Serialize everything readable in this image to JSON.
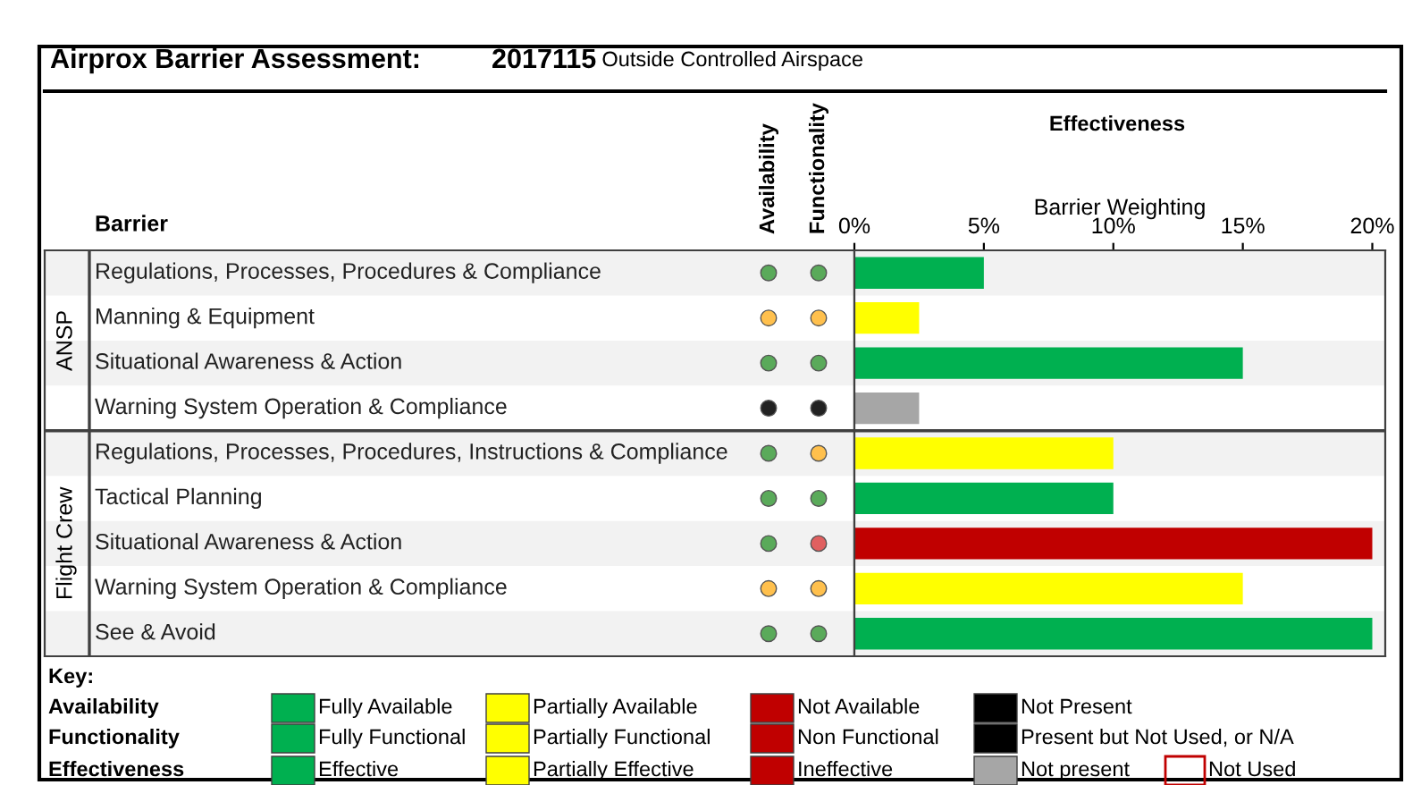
{
  "chart_data": {
    "type": "bar",
    "orientation": "horizontal",
    "title": "Airprox Barrier Assessment:",
    "subtitle": "2017115 Outside Controlled Airspace",
    "ylabel": "Barrier",
    "x2label": "Effectiveness",
    "xlabel": "Barrier Weighting",
    "categories": [
      "Regulations, Processes, Procedures & Compliance",
      "Manning & Equipment",
      "Situational Awareness & Action",
      "Warning System Operation & Compliance",
      "Regulations, Processes, Procedures, Instructions & Compliance",
      "Tactical Planning",
      "Situational Awareness & Action",
      "Warning System Operation & Compliance",
      "See & Avoid"
    ],
    "series": [
      {
        "values": [
          5,
          2.5,
          15,
          2.5,
          10,
          10,
          20,
          15,
          20
        ],
        "colors": [
          "#00b050",
          "#ffff00",
          "#00b050",
          "#a6a6a6",
          "#ffff00",
          "#00b050",
          "#c00000",
          "#ffff00",
          "#00b050"
        ]
      }
    ],
    "xlim": [
      0,
      20.5
    ],
    "xticks": [
      {
        "value": 0,
        "label": "0%"
      },
      {
        "value": 5,
        "label": "5%"
      },
      {
        "value": 10,
        "label": "10%"
      },
      {
        "value": 15,
        "label": "15%"
      },
      {
        "value": 20,
        "label": "20%"
      }
    ],
    "annotations": [
      "ANSP",
      "Flight Crew",
      "Availability",
      "Functionality",
      "Key:",
      "Availability",
      "Functionality",
      "Effectiveness",
      "Fully Available",
      "Partially Available",
      "Not Available",
      "Not Present",
      "Fully Functional",
      "Partially Functional",
      "Non Functional",
      "Present but Not Used, or N/A",
      "Effective",
      "Partially Effective",
      "Ineffective",
      "Not present",
      "Not Used"
    ]
  }
}
